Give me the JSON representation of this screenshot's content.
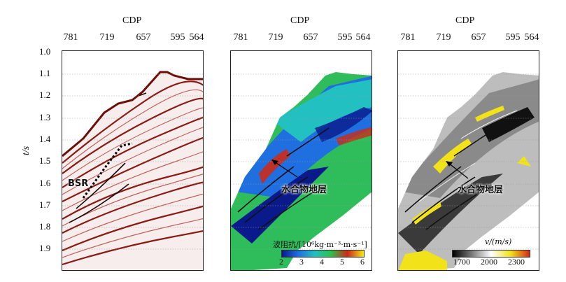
{
  "panels": [
    {
      "cdp_label": "CDP",
      "x_ticks": [
        "781",
        "719",
        "657",
        "595",
        "564"
      ]
    },
    {
      "cdp_label": "CDP",
      "x_ticks": [
        "781",
        "719",
        "657",
        "595",
        "564"
      ]
    },
    {
      "cdp_label": "CDP",
      "x_ticks": [
        "781",
        "719",
        "657",
        "595",
        "564"
      ]
    }
  ],
  "y_axis": {
    "label": "t/s",
    "ticks": [
      "1.0",
      "1.1",
      "1.2",
      "1.3",
      "1.4",
      "1.5",
      "1.6",
      "1.7",
      "1.8",
      "1.9"
    ]
  },
  "annotations": {
    "bsr": "BSR",
    "hydrate_layer_mid": "水合物地层",
    "hydrate_layer_right": "水合物地层"
  },
  "colorbar_impedance": {
    "title": "波阻抗/[10⁶kg·m⁻³·m·s⁻¹]",
    "ticks": [
      "2",
      "3",
      "4",
      "5",
      "6"
    ],
    "colors": [
      "#0a1a8a",
      "#1f6fe0",
      "#22c0c0",
      "#2ec04a",
      "#cc2a18",
      "#f5e81a"
    ]
  },
  "colorbar_velocity": {
    "title": "v/(m/s)",
    "ticks": [
      "1700",
      "2000",
      "2300"
    ],
    "colors": [
      "#000000",
      "#7a7a7a",
      "#ffffff",
      "#f2e21a",
      "#d42a18"
    ]
  }
}
